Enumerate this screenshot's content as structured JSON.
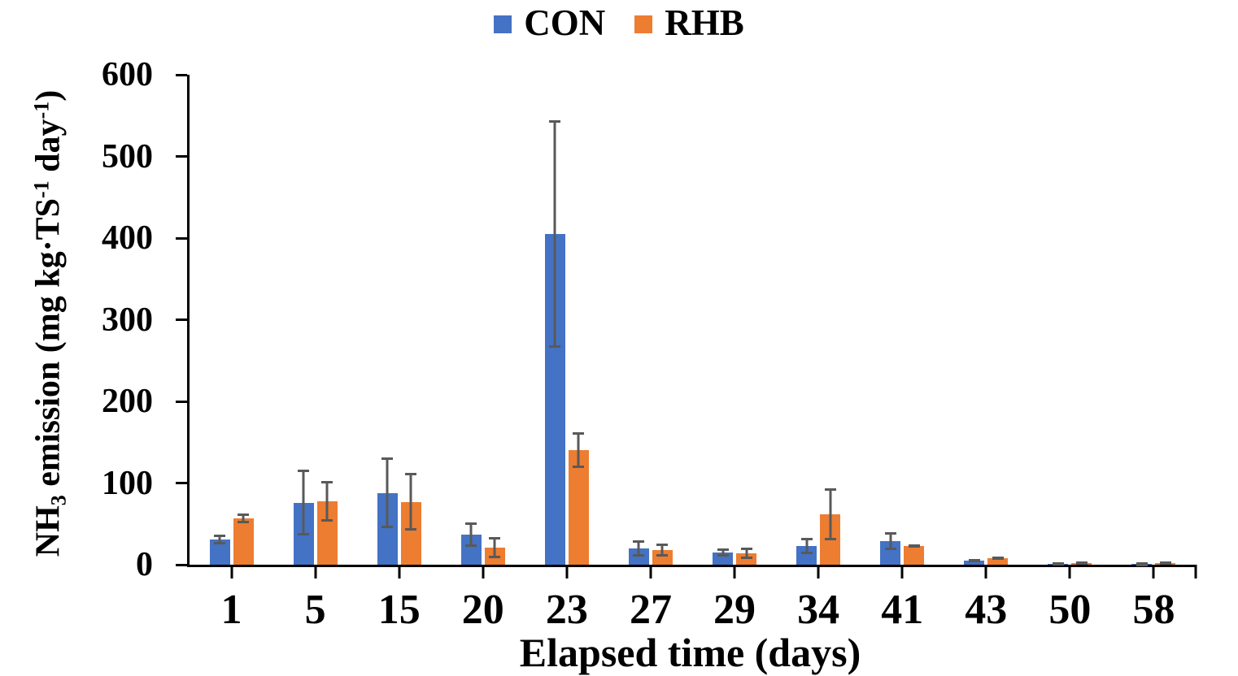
{
  "chart_data": {
    "type": "bar",
    "title": "",
    "categories": [
      "1",
      "5",
      "15",
      "20",
      "23",
      "27",
      "29",
      "34",
      "41",
      "43",
      "50",
      "58"
    ],
    "series": [
      {
        "name": "CON",
        "color": "#4472C4",
        "values": [
          31,
          76,
          88,
          37,
          405,
          20,
          15,
          23,
          29,
          5,
          1.5,
          1
        ],
        "errors": [
          6,
          40,
          43,
          15,
          139,
          10,
          5,
          10,
          11,
          2,
          1,
          0.5
        ]
      },
      {
        "name": "RHB",
        "color": "#ED7D31",
        "values": [
          57,
          78,
          77,
          21,
          140,
          18,
          14,
          62,
          23,
          8,
          2.5,
          2.5
        ],
        "errors": [
          6,
          25,
          35,
          13,
          22,
          8,
          7,
          32,
          2,
          2,
          1,
          1
        ]
      }
    ],
    "xlabel": "Elapsed time (days)",
    "ylabel": "NH3 emission (mg kg·TS-1 day-1)",
    "ylabel_parts": {
      "base1": "NH",
      "sub1": "3",
      "base2": " emission (mg kg·TS",
      "sup1": "-1",
      "base3": " day",
      "sup2": "-1",
      "base4": ")"
    },
    "ylim": [
      0,
      600
    ],
    "yticks": [
      0,
      100,
      200,
      300,
      400,
      500,
      600
    ],
    "legend_position": "top-center",
    "grid": false,
    "error_bars": true,
    "error_bar_color": "#595959",
    "axis_color": "#000000"
  }
}
